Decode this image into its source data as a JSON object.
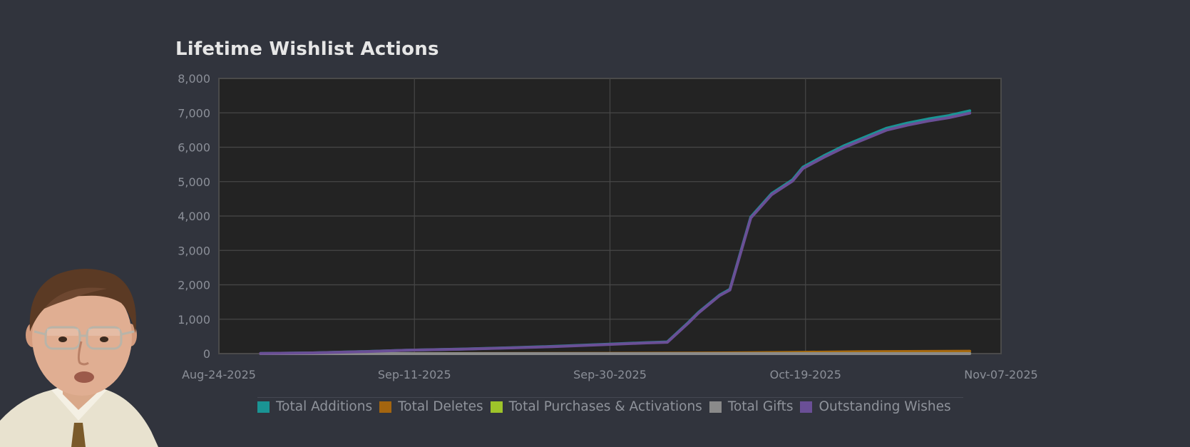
{
  "chart_data": {
    "type": "line",
    "title": "Lifetime Wishlist Actions",
    "xlabel": "",
    "ylabel": "",
    "x_range": [
      "2025-08-24",
      "2025-11-07"
    ],
    "x_ticks": [
      "Aug-24-2025",
      "Sep-11-2025",
      "Sep-30-2025",
      "Oct-19-2025",
      "Nov-07-2025"
    ],
    "ylim": [
      0,
      8000
    ],
    "y_ticks": [
      "0",
      "1,000",
      "2,000",
      "3,000",
      "4,000",
      "5,000",
      "6,000",
      "7,000",
      "8,000"
    ],
    "grid": true,
    "legend_position": "bottom",
    "series": [
      {
        "name": "Total Additions",
        "color": "#1a9494",
        "points": [
          [
            "2025-08-28",
            5
          ],
          [
            "2025-09-02",
            20
          ],
          [
            "2025-09-07",
            60
          ],
          [
            "2025-09-11",
            100
          ],
          [
            "2025-09-16",
            130
          ],
          [
            "2025-09-21",
            170
          ],
          [
            "2025-09-25",
            210
          ],
          [
            "2025-09-30",
            270
          ],
          [
            "2025-10-04",
            320
          ],
          [
            "2025-10-06",
            340
          ],
          [
            "2025-10-08",
            900
          ],
          [
            "2025-10-09",
            1200
          ],
          [
            "2025-10-11",
            1700
          ],
          [
            "2025-10-12",
            1870
          ],
          [
            "2025-10-14",
            3970
          ],
          [
            "2025-10-16",
            4650
          ],
          [
            "2025-10-18",
            5050
          ],
          [
            "2025-10-19",
            5420
          ],
          [
            "2025-10-21",
            5750
          ],
          [
            "2025-10-23",
            6050
          ],
          [
            "2025-10-25",
            6300
          ],
          [
            "2025-10-27",
            6550
          ],
          [
            "2025-10-29",
            6700
          ],
          [
            "2025-10-31",
            6820
          ],
          [
            "2025-11-02",
            6920
          ],
          [
            "2025-11-04",
            7060
          ]
        ]
      },
      {
        "name": "Total Deletes",
        "color": "#a4650f",
        "points": [
          [
            "2025-08-28",
            0
          ],
          [
            "2025-09-11",
            3
          ],
          [
            "2025-09-30",
            8
          ],
          [
            "2025-10-08",
            15
          ],
          [
            "2025-10-14",
            25
          ],
          [
            "2025-10-19",
            40
          ],
          [
            "2025-10-25",
            55
          ],
          [
            "2025-11-04",
            70
          ]
        ]
      },
      {
        "name": "Total Purchases & Activations",
        "color": "#9ec42a",
        "points": [
          [
            "2025-08-28",
            0
          ],
          [
            "2025-09-30",
            1
          ],
          [
            "2025-10-19",
            2
          ],
          [
            "2025-11-04",
            3
          ]
        ]
      },
      {
        "name": "Total Gifts",
        "color": "#8a8a8a",
        "points": [
          [
            "2025-08-28",
            0
          ],
          [
            "2025-11-04",
            0
          ]
        ]
      },
      {
        "name": "Outstanding Wishes",
        "color": "#6a4f96",
        "points": [
          [
            "2025-08-28",
            5
          ],
          [
            "2025-09-02",
            20
          ],
          [
            "2025-09-07",
            58
          ],
          [
            "2025-09-11",
            97
          ],
          [
            "2025-09-16",
            127
          ],
          [
            "2025-09-21",
            165
          ],
          [
            "2025-09-25",
            204
          ],
          [
            "2025-09-30",
            262
          ],
          [
            "2025-10-04",
            310
          ],
          [
            "2025-10-06",
            330
          ],
          [
            "2025-10-08",
            885
          ],
          [
            "2025-10-09",
            1185
          ],
          [
            "2025-10-11",
            1685
          ],
          [
            "2025-10-12",
            1850
          ],
          [
            "2025-10-14",
            3945
          ],
          [
            "2025-10-16",
            4620
          ],
          [
            "2025-10-18",
            5015
          ],
          [
            "2025-10-19",
            5380
          ],
          [
            "2025-10-21",
            5705
          ],
          [
            "2025-10-23",
            6000
          ],
          [
            "2025-10-25",
            6245
          ],
          [
            "2025-10-27",
            6495
          ],
          [
            "2025-10-29",
            6640
          ],
          [
            "2025-10-31",
            6760
          ],
          [
            "2025-11-02",
            6860
          ],
          [
            "2025-11-04",
            6990
          ]
        ]
      }
    ]
  },
  "avatar": {
    "description_icon": "person-portrait-icon"
  }
}
